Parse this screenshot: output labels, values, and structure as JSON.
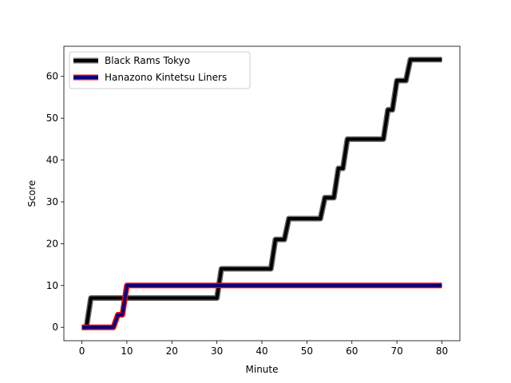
{
  "chart_data": {
    "type": "line",
    "title": "",
    "xlabel": "Minute",
    "ylabel": "Score",
    "xlim": [
      -4,
      84
    ],
    "ylim": [
      -3.2,
      67.2
    ],
    "xticks": [
      0,
      10,
      20,
      30,
      40,
      50,
      60,
      70,
      80
    ],
    "yticks": [
      0,
      10,
      20,
      30,
      40,
      50,
      60
    ],
    "grid": false,
    "legend_position": "top-left",
    "series": [
      {
        "name": "Black Rams Tokyo",
        "color": "#000000",
        "edge_color": "#666666",
        "x": [
          0,
          1,
          2,
          30,
          31,
          42,
          43,
          45,
          46,
          53,
          54,
          56,
          57,
          58,
          59,
          67,
          68,
          69,
          70,
          72,
          73,
          80
        ],
        "y": [
          0,
          0,
          7,
          7,
          14,
          14,
          21,
          21,
          26,
          26,
          31,
          31,
          38,
          38,
          45,
          45,
          52,
          52,
          59,
          59,
          64,
          64
        ]
      },
      {
        "name": "Hanazono Kintetsu Liners",
        "color": "#000080",
        "edge_color": "#ff0000",
        "x": [
          0,
          7,
          8,
          9,
          10,
          80
        ],
        "y": [
          0,
          0,
          3,
          3,
          10,
          10
        ]
      }
    ]
  }
}
